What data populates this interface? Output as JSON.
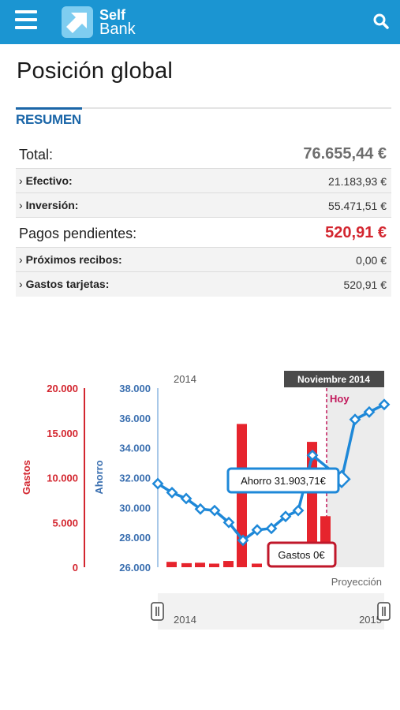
{
  "header": {
    "menu_icon": "hamburger-menu-icon",
    "logo_icon": "self-bank-arrow-logo",
    "logo_line1": "Self",
    "logo_line2": "Bank",
    "search_icon": "search-icon",
    "colors": {
      "bar": "#1b95d2",
      "brand_blue": "#1b66a8",
      "accent_red": "#d3262f"
    }
  },
  "page": {
    "title": "Posición global",
    "tab_label": "RESUMEN"
  },
  "summary": {
    "total": {
      "label": "Total:",
      "value": "76.655,44 €"
    },
    "efectivo": {
      "label": "Efectivo:",
      "value": "21.183,93 €"
    },
    "inversion": {
      "label": "Inversión:",
      "value": "55.471,51 €"
    },
    "pagos": {
      "label": "Pagos pendientes:",
      "value": "520,91 €"
    },
    "recibos": {
      "label": "Próximos recibos:",
      "value": "0,00 €"
    },
    "tarjetas": {
      "label": "Gastos tarjetas:",
      "value": "520,91 €"
    },
    "chevron": "›"
  },
  "chart_data": {
    "type": "bar+line",
    "top_left_label": "2014",
    "month_badge": "Noviembre 2014",
    "today_label": "Hoy",
    "projection_label": "Proyección",
    "left_axis": {
      "label": "Gastos",
      "ticks": [
        "20.000",
        "15.000",
        "10.000",
        "5.000",
        "0"
      ],
      "min": 0,
      "max": 20000
    },
    "right_axis": {
      "label": "Ahorro",
      "ticks": [
        "38.000",
        "36.000",
        "34.000",
        "32.000",
        "30.000",
        "28.000",
        "26.000"
      ],
      "min": 26000,
      "max": 38000
    },
    "bars": {
      "name": "Gastos",
      "values": [
        600,
        450,
        500,
        400,
        700,
        16000,
        400,
        0,
        14000,
        5700
      ]
    },
    "line": {
      "name": "Ahorro",
      "values": [
        31600,
        31000,
        30600,
        29900,
        29800,
        29000,
        27800,
        28500,
        28600,
        29400,
        29800,
        33500,
        31903.71,
        35900,
        36400,
        36900
      ]
    },
    "tooltip_ahorro": "Ahorro 31.903,71€",
    "tooltip_gastos": "Gastos 0€",
    "navigator": {
      "start_label": "2014",
      "end_label": "2015"
    }
  }
}
